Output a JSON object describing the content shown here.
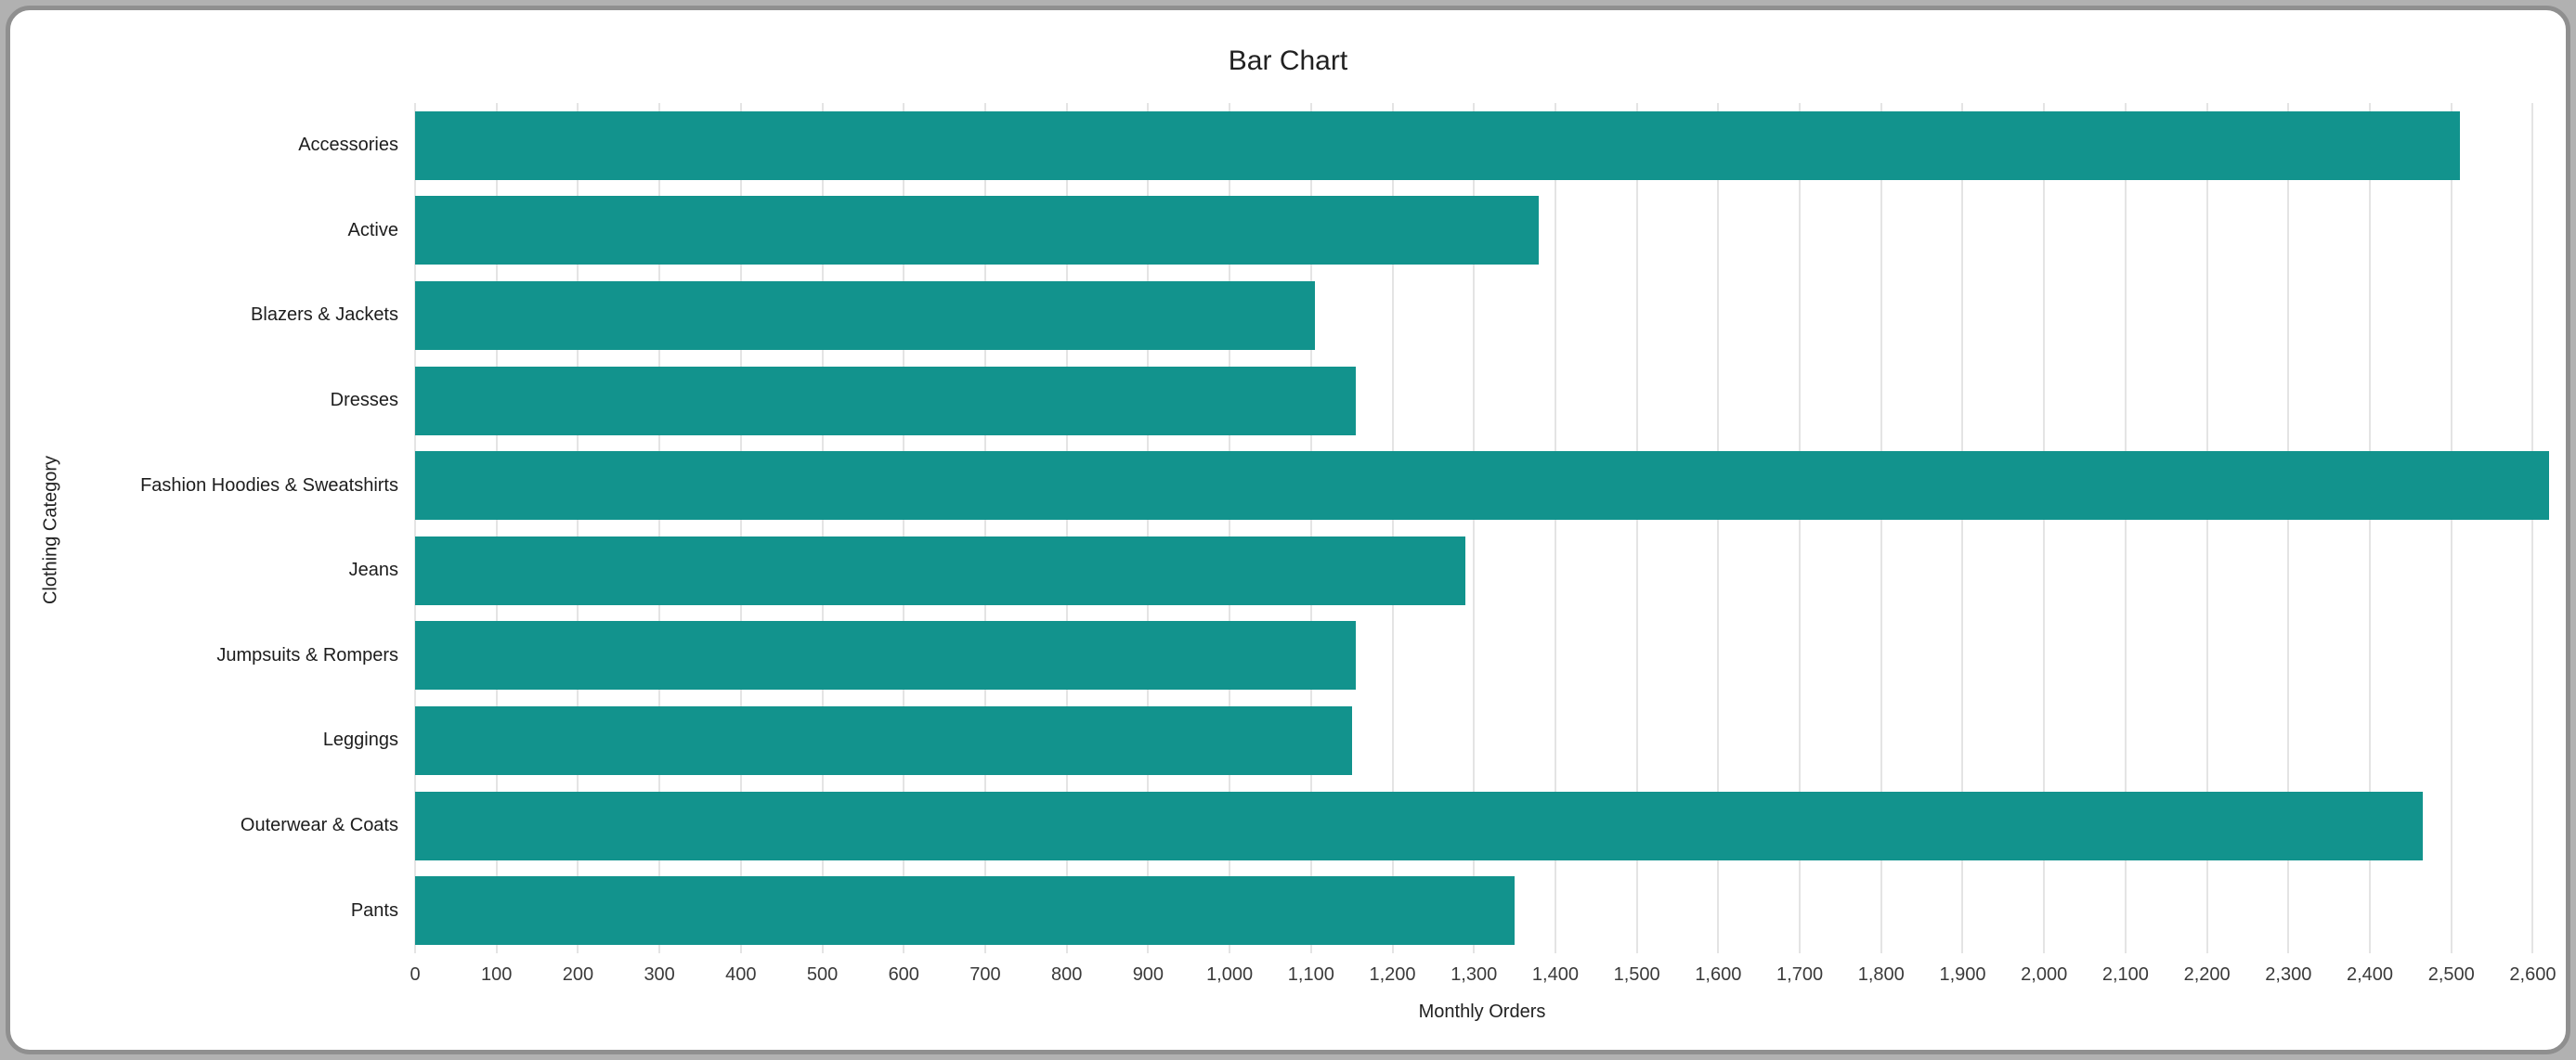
{
  "window": {
    "background_color": "#b1b1b1",
    "card_color": "#ffffff",
    "frame_border_color": "#8f8f8f"
  },
  "chart_data": {
    "type": "bar",
    "orientation": "horizontal",
    "title": "Bar Chart",
    "xlabel": "Monthly Orders",
    "ylabel": "Clothing Category",
    "categories": [
      "Accessories",
      "Active",
      "Blazers & Jackets",
      "Dresses",
      "Fashion Hoodies & Sweatshirts",
      "Jeans",
      "Jumpsuits & Rompers",
      "Leggings",
      "Outerwear & Coats",
      "Pants"
    ],
    "values": [
      2510,
      1380,
      1105,
      1155,
      2620,
      1290,
      1155,
      1150,
      2465,
      1350
    ],
    "xlim": [
      0,
      2620
    ],
    "xtick_step": 100,
    "xtick_labels": [
      "0",
      "100",
      "200",
      "300",
      "400",
      "500",
      "600",
      "700",
      "800",
      "900",
      "1,000",
      "1,100",
      "1,200",
      "1,300",
      "1,400",
      "1,500",
      "1,600",
      "1,700",
      "1,800",
      "1,900",
      "2,000",
      "2,100",
      "2,200",
      "2,300",
      "2,400",
      "2,500",
      "2,600"
    ],
    "grid": true,
    "legend": false,
    "bar_color": "#12938d",
    "gridline_color": "#e4e4e4",
    "text_color": "#212121"
  }
}
